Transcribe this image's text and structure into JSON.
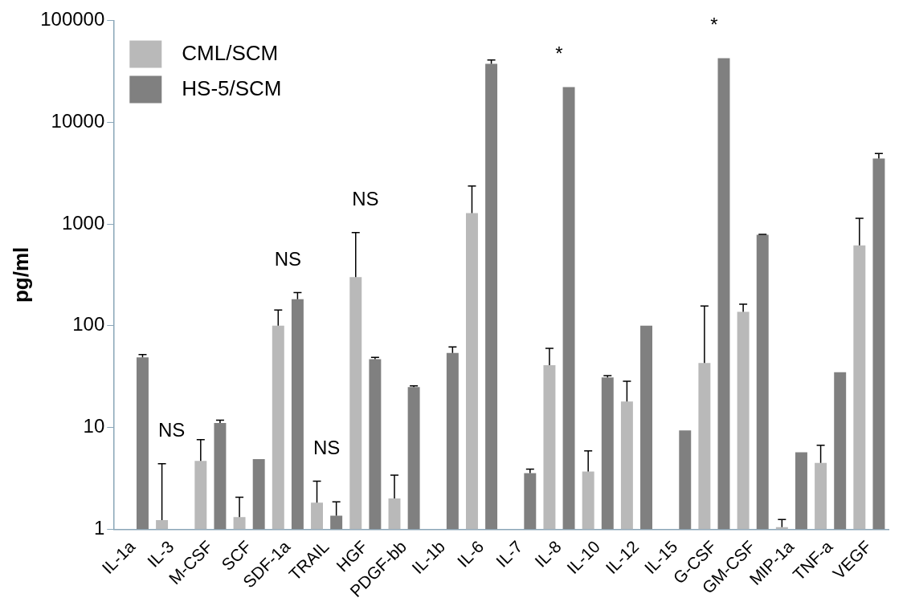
{
  "chart_data": {
    "type": "bar",
    "ylabel": "pg/ml",
    "categories": [
      "IL-1a",
      "IL-3",
      "M-CSF",
      "SCF",
      "SDF-1a",
      "TRAIL",
      "HGF",
      "PDGF-bb",
      "IL-1b",
      "IL-6",
      "IL-7",
      "IL-8",
      "IL-10",
      "IL-12",
      "IL-15",
      "G-CSF",
      "GM-CSF",
      "MIP-1a",
      "TNF-a",
      "VEGF"
    ],
    "series": [
      {
        "name": "CML/SCM",
        "color": "#b9b9b9",
        "values": [
          null,
          1.23,
          4.7,
          1.32,
          100,
          1.83,
          300,
          2.01,
          null,
          1280,
          null,
          41,
          3.7,
          18,
          null,
          43,
          137,
          1.05,
          4.5,
          615
        ],
        "errors": [
          null,
          [
            1.23,
            4.4
          ],
          [
            4.7,
            7.6
          ],
          [
            1.32,
            2.07
          ],
          [
            100,
            143
          ],
          [
            1.83,
            2.97
          ],
          [
            300,
            824
          ],
          [
            2.01,
            3.41
          ],
          null,
          [
            1280,
            2360
          ],
          null,
          [
            41,
            60
          ],
          [
            3.7,
            5.9
          ],
          [
            18,
            28.5
          ],
          null,
          [
            43,
            156
          ],
          [
            137,
            163
          ],
          [
            1.05,
            1.25
          ],
          [
            4.5,
            6.7
          ],
          [
            615,
            1135
          ]
        ]
      },
      {
        "name": "HS-5/SCM",
        "color": "#808080",
        "values": [
          49,
          null,
          11.1,
          4.9,
          182,
          1.36,
          47,
          25,
          54,
          37400,
          3.56,
          22100,
          31,
          100,
          9.35,
          42600,
          783,
          5.7,
          35,
          4400
        ],
        "errors": [
          [
            49,
            52
          ],
          null,
          [
            11.1,
            11.8
          ],
          null,
          [
            182,
            212
          ],
          [
            1.36,
            1.86
          ],
          [
            47,
            49
          ],
          [
            25,
            25.7
          ],
          [
            54,
            62
          ],
          [
            37400,
            40800
          ],
          [
            3.56,
            3.9
          ],
          null,
          [
            31,
            32.4
          ],
          null,
          null,
          null,
          [
            783,
            790
          ],
          null,
          null,
          [
            4400,
            4920
          ]
        ]
      }
    ],
    "ylim": [
      1,
      100000
    ],
    "yticks": [
      1,
      10,
      100,
      1000,
      10000,
      100000
    ],
    "log": "y",
    "grid": false,
    "legend": "top left",
    "annotations": [
      "NS",
      "NS",
      "NS",
      "NS",
      "*",
      "*"
    ]
  }
}
